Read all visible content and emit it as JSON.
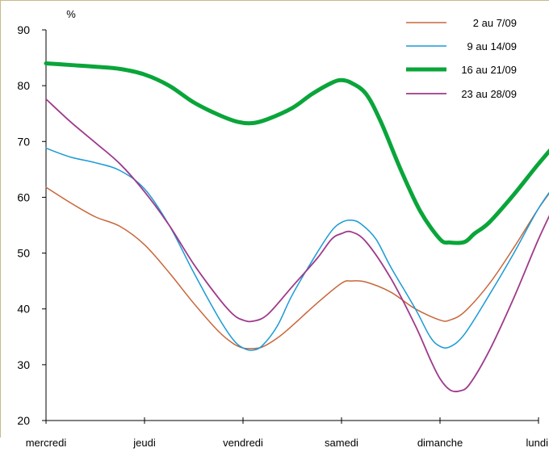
{
  "chart_data": {
    "type": "line",
    "title": "",
    "xlabel": "",
    "ylabel": "%",
    "ylim": [
      20,
      90
    ],
    "yticks": [
      20,
      30,
      40,
      50,
      60,
      70,
      80,
      90
    ],
    "categories": [
      "mercredi",
      "jeudi",
      "vendredi",
      "samedi",
      "dimanche",
      "lundi"
    ],
    "grid": false,
    "legend_position": "top-right",
    "series": [
      {
        "name": "2 au 7/09",
        "color": "#c8663a",
        "width": 1.5,
        "values": [
          [
            0,
            61.8
          ],
          [
            0.25,
            59.0
          ],
          [
            0.5,
            56.5
          ],
          [
            0.75,
            54.8
          ],
          [
            1.0,
            51.5
          ],
          [
            1.25,
            46.5
          ],
          [
            1.5,
            41.0
          ],
          [
            1.75,
            36.0
          ],
          [
            1.9,
            33.8
          ],
          [
            2.0,
            33.0
          ],
          [
            2.1,
            32.9
          ],
          [
            2.2,
            33.2
          ],
          [
            2.35,
            34.8
          ],
          [
            2.5,
            37.0
          ],
          [
            2.75,
            41.0
          ],
          [
            3.0,
            44.6
          ],
          [
            3.1,
            45.0
          ],
          [
            3.25,
            44.8
          ],
          [
            3.5,
            43.0
          ],
          [
            3.75,
            40.0
          ],
          [
            4.0,
            38.0
          ],
          [
            4.1,
            38.0
          ],
          [
            4.25,
            39.5
          ],
          [
            4.5,
            44.5
          ],
          [
            4.75,
            51.0
          ],
          [
            5.0,
            58.0
          ],
          [
            5.2,
            63.0
          ],
          [
            5.3,
            66.5
          ]
        ]
      },
      {
        "name": "9 au 14/09",
        "color": "#1a9ad6",
        "width": 1.5,
        "values": [
          [
            0,
            68.8
          ],
          [
            0.25,
            67.2
          ],
          [
            0.5,
            66.2
          ],
          [
            0.75,
            64.8
          ],
          [
            1.0,
            61.5
          ],
          [
            1.25,
            55.0
          ],
          [
            1.5,
            46.5
          ],
          [
            1.75,
            38.5
          ],
          [
            1.9,
            34.5
          ],
          [
            2.0,
            33.0
          ],
          [
            2.1,
            32.6
          ],
          [
            2.2,
            33.5
          ],
          [
            2.35,
            37.0
          ],
          [
            2.5,
            42.5
          ],
          [
            2.75,
            50.0
          ],
          [
            2.9,
            54.0
          ],
          [
            3.0,
            55.5
          ],
          [
            3.1,
            55.9
          ],
          [
            3.2,
            55.2
          ],
          [
            3.35,
            52.5
          ],
          [
            3.5,
            47.5
          ],
          [
            3.75,
            40.0
          ],
          [
            3.9,
            35.0
          ],
          [
            4.0,
            33.3
          ],
          [
            4.1,
            33.2
          ],
          [
            4.25,
            35.5
          ],
          [
            4.5,
            42.5
          ],
          [
            4.75,
            50.0
          ],
          [
            5.0,
            58.0
          ],
          [
            5.2,
            63.0
          ],
          [
            5.3,
            65.0
          ]
        ]
      },
      {
        "name": "16 au 21/09",
        "color": "#0aa53a",
        "width": 5,
        "values": [
          [
            0,
            84.0
          ],
          [
            0.25,
            83.7
          ],
          [
            0.5,
            83.4
          ],
          [
            0.75,
            83.0
          ],
          [
            1.0,
            82.0
          ],
          [
            1.25,
            80.0
          ],
          [
            1.5,
            77.0
          ],
          [
            1.75,
            74.8
          ],
          [
            1.95,
            73.5
          ],
          [
            2.1,
            73.3
          ],
          [
            2.25,
            74.0
          ],
          [
            2.5,
            76.0
          ],
          [
            2.7,
            78.5
          ],
          [
            2.9,
            80.5
          ],
          [
            3.0,
            81.0
          ],
          [
            3.1,
            80.5
          ],
          [
            3.25,
            78.5
          ],
          [
            3.4,
            73.5
          ],
          [
            3.6,
            65.0
          ],
          [
            3.8,
            57.5
          ],
          [
            4.0,
            52.5
          ],
          [
            4.1,
            51.9
          ],
          [
            4.25,
            52.0
          ],
          [
            4.35,
            53.5
          ],
          [
            4.5,
            55.5
          ],
          [
            4.75,
            60.5
          ],
          [
            5.0,
            66.0
          ],
          [
            5.2,
            70.0
          ],
          [
            5.3,
            71.0
          ]
        ]
      },
      {
        "name": "23 au 28/09",
        "color": "#9e3a8a",
        "width": 1.8,
        "values": [
          [
            0,
            77.6
          ],
          [
            0.25,
            73.5
          ],
          [
            0.5,
            69.8
          ],
          [
            0.75,
            66.0
          ],
          [
            1.0,
            61.0
          ],
          [
            1.25,
            55.0
          ],
          [
            1.5,
            48.0
          ],
          [
            1.75,
            42.0
          ],
          [
            1.9,
            39.0
          ],
          [
            2.0,
            38.0
          ],
          [
            2.1,
            37.8
          ],
          [
            2.25,
            39.0
          ],
          [
            2.5,
            44.0
          ],
          [
            2.75,
            49.0
          ],
          [
            2.9,
            52.5
          ],
          [
            3.0,
            53.5
          ],
          [
            3.1,
            53.8
          ],
          [
            3.25,
            52.0
          ],
          [
            3.5,
            45.5
          ],
          [
            3.75,
            37.0
          ],
          [
            3.9,
            31.0
          ],
          [
            4.0,
            27.5
          ],
          [
            4.1,
            25.5
          ],
          [
            4.2,
            25.3
          ],
          [
            4.3,
            26.5
          ],
          [
            4.5,
            32.5
          ],
          [
            4.75,
            42.0
          ],
          [
            5.0,
            52.5
          ],
          [
            5.2,
            60.0
          ],
          [
            5.3,
            64.0
          ]
        ]
      }
    ]
  }
}
